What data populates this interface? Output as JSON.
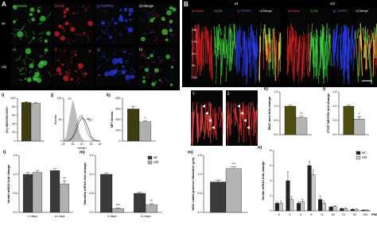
{
  "panel_labels": [
    "A",
    "B"
  ],
  "figure_a": {
    "row_labels": [
      "wt",
      "rd1"
    ],
    "image_labels": [
      "a) Nestin",
      "b) GS",
      "c) TOPRO",
      "d) Merge",
      "e)",
      "f)",
      "g)",
      "h)"
    ]
  },
  "figure_b": {
    "group_labels": [
      "wt",
      "rd1"
    ],
    "image_labels": [
      "a) Nestin",
      "b) GS",
      "c) TOPRO",
      "d) Merge",
      "e) Nestin",
      "f) GS",
      "g) TOPRO",
      "h) Merge"
    ],
    "layer_labels": [
      "ONL",
      "OPL",
      "INL",
      "IPL",
      "GCL"
    ],
    "zoom_labels": [
      "i)",
      "j)"
    ]
  },
  "chart_data": [
    {
      "type": "bar",
      "panel": "i)",
      "ylabel": "(%) NESTIN+/GS+",
      "categories": [
        null
      ],
      "series": [
        {
          "color": "#3d3d10",
          "values": [
            90
          ],
          "errors": [
            2
          ]
        },
        {
          "color": "#b0b0b0",
          "values": [
            88
          ],
          "errors": [
            2
          ]
        }
      ],
      "ylim": [
        0,
        100
      ],
      "yticks": [
        0,
        20,
        40,
        60,
        80,
        100
      ]
    },
    {
      "type": "line",
      "panel": "j)",
      "ylabel": "Events",
      "xlabel": "Nestin",
      "log_x": true,
      "xlim": [
        1,
        10000
      ],
      "xticks": [
        {
          "value": 1,
          "label": "10⁰"
        },
        {
          "value": 10,
          "label": "10¹"
        },
        {
          "value": 100,
          "label": "10²"
        },
        {
          "value": 1000,
          "label": "10³"
        },
        {
          "value": 10000,
          "label": "10⁴"
        }
      ],
      "ylim": [
        0,
        100
      ],
      "yticks": [
        0,
        50,
        100
      ],
      "series": [
        {
          "name": "iso",
          "color": "#bbbbbb",
          "fill": true,
          "x": [
            1,
            2,
            5,
            10,
            20,
            50,
            100,
            200,
            500,
            1000,
            2000,
            5000,
            10000
          ],
          "values": [
            0,
            10,
            60,
            95,
            70,
            20,
            5,
            1,
            0,
            0,
            0,
            0,
            0
          ]
        },
        {
          "name": "wt",
          "color": "#222222",
          "fill": false,
          "x": [
            1,
            2,
            5,
            10,
            20,
            50,
            100,
            200,
            500,
            1000,
            2000,
            5000,
            10000
          ],
          "values": [
            0,
            0,
            2,
            8,
            20,
            45,
            55,
            50,
            30,
            10,
            3,
            1,
            0
          ]
        },
        {
          "name": "rd1",
          "color": "#666666",
          "fill": false,
          "x": [
            1,
            2,
            5,
            10,
            20,
            50,
            100,
            200,
            500,
            1000,
            2000,
            5000,
            10000
          ],
          "values": [
            0,
            0,
            3,
            12,
            30,
            55,
            60,
            40,
            15,
            5,
            1,
            0,
            0
          ]
        }
      ]
    },
    {
      "type": "bar",
      "panel": "k)",
      "ylabel": "MFI Nestin",
      "categories": [
        null
      ],
      "series": [
        {
          "color": "#3d3d10",
          "values": [
            300
          ],
          "errors": [
            25
          ],
          "significance": [
            null
          ]
        },
        {
          "color": "#b0b0b0",
          "values": [
            180
          ],
          "errors": [
            12
          ],
          "significance": [
            "*"
          ]
        }
      ],
      "ylim": [
        0,
        400
      ],
      "yticks": [
        0,
        100,
        200,
        300,
        400
      ]
    },
    {
      "type": "bar",
      "panel": "l)",
      "ylabel": "Nestin mRNA fold change",
      "categories": [
        "6 days",
        "11 days"
      ],
      "series": [
        {
          "color": "#3a3a3a",
          "values": [
            1.0,
            1.1
          ],
          "errors": [
            0.05,
            0.05
          ],
          "significance": [
            null,
            null
          ]
        },
        {
          "color": "#b0b0b0",
          "values": [
            1.05,
            0.75
          ],
          "errors": [
            0.05,
            0.08
          ],
          "significance": [
            null,
            "**"
          ]
        }
      ],
      "ylim": [
        0,
        1.5
      ],
      "yticks": [
        {
          "value": 0,
          "label": "0.0"
        },
        0.5,
        {
          "value": 1,
          "label": "1.0"
        },
        1.5
      ]
    },
    {
      "type": "bar",
      "panel": "m)",
      "ylabel": "Vimentin mRNA fold change",
      "categories": [
        "6 days",
        "11 days"
      ],
      "legend": "upper right",
      "series": [
        {
          "name": "wt",
          "color": "#3a3a3a",
          "values": [
            1.0,
            0.5
          ],
          "errors": [
            0.04,
            0.03
          ],
          "significance": [
            null,
            null
          ]
        },
        {
          "name": "rd1",
          "color": "#b0b0b0",
          "values": [
            0.1,
            0.2
          ],
          "errors": [
            0.02,
            0.03
          ],
          "significance": [
            "***",
            "**"
          ]
        }
      ],
      "ylim": [
        0,
        1.5
      ],
      "yticks": [
        {
          "value": 0,
          "label": "0.0"
        },
        0.5,
        {
          "value": 1,
          "label": "1.0"
        },
        1.5
      ]
    },
    {
      "type": "bar",
      "panel": "k)",
      "ylabel": "MGC area fold change",
      "categories": [
        null
      ],
      "series": [
        {
          "color": "#4d4d12",
          "values": [
            1.0
          ],
          "errors": [
            0.03
          ],
          "significance": [
            null
          ]
        },
        {
          "color": "#b5b5b5",
          "values": [
            0.6
          ],
          "errors": [
            0.05
          ],
          "significance": [
            "**"
          ]
        }
      ],
      "ylim": [
        0,
        1.5
      ],
      "yticks": [
        {
          "value": 0,
          "label": "0.0"
        },
        0.5,
        {
          "value": 1,
          "label": "1.0"
        },
        1.5
      ]
    },
    {
      "type": "bar",
      "panel": "l)",
      "ylabel": "CTCF NESTIN fold change",
      "categories": [
        null
      ],
      "series": [
        {
          "color": "#4d4d12",
          "values": [
            1.0
          ],
          "errors": [
            0.03
          ],
          "significance": [
            null
          ]
        },
        {
          "color": "#b5b5b5",
          "values": [
            0.55
          ],
          "errors": [
            0.08
          ],
          "significance": [
            "*"
          ]
        }
      ],
      "ylim": [
        0,
        1.5
      ],
      "yticks": [
        {
          "value": 0,
          "label": "0.0"
        },
        0.5,
        {
          "value": 1,
          "label": "1.0"
        },
        1.5
      ]
    },
    {
      "type": "bar",
      "panel": "m)",
      "ylabel": "MGC radial process thickness (µm)",
      "categories": [
        null
      ],
      "series": [
        {
          "color": "#3a3a3a",
          "values": [
            0.8
          ],
          "errors": [
            0.05
          ],
          "significance": [
            null
          ]
        },
        {
          "color": "#b5b5b5",
          "values": [
            1.15
          ],
          "errors": [
            0.05
          ],
          "significance": [
            "***"
          ]
        }
      ],
      "ylim": [
        0,
        1.5
      ],
      "yticks": [
        {
          "value": 0,
          "label": "0.0"
        },
        0.5,
        {
          "value": 1,
          "label": "1.0"
        },
        1.5
      ]
    },
    {
      "type": "bar",
      "panel": "n)",
      "ylabel": "Nestin mRNA fold change",
      "xlabel": "PND",
      "legend": "upper right",
      "categories": [
        "0",
        "3",
        "5",
        "8",
        "11",
        "15",
        "21",
        "30",
        "100"
      ],
      "series": [
        {
          "name": "wt",
          "color": "#222222",
          "values": [
            1,
            4,
            1,
            6,
            1.5,
            0.5,
            0.3,
            0.2,
            0.1
          ],
          "errors": [
            0.2,
            1.2,
            0.2,
            0.6,
            0.5,
            0.1,
            0.1,
            0.05,
            0.05
          ]
        },
        {
          "name": "rd1",
          "color": "#c8c8c8",
          "values": [
            1,
            1.5,
            1.2,
            4.8,
            1,
            0.6,
            0.3,
            0.2,
            0.1
          ],
          "errors": [
            0.3,
            0.4,
            0.3,
            0.6,
            0.3,
            0.1,
            0.1,
            0.05,
            0.05
          ]
        }
      ],
      "ylim": [
        0,
        8
      ],
      "yticks": [
        0,
        2,
        4,
        6,
        8
      ]
    }
  ]
}
